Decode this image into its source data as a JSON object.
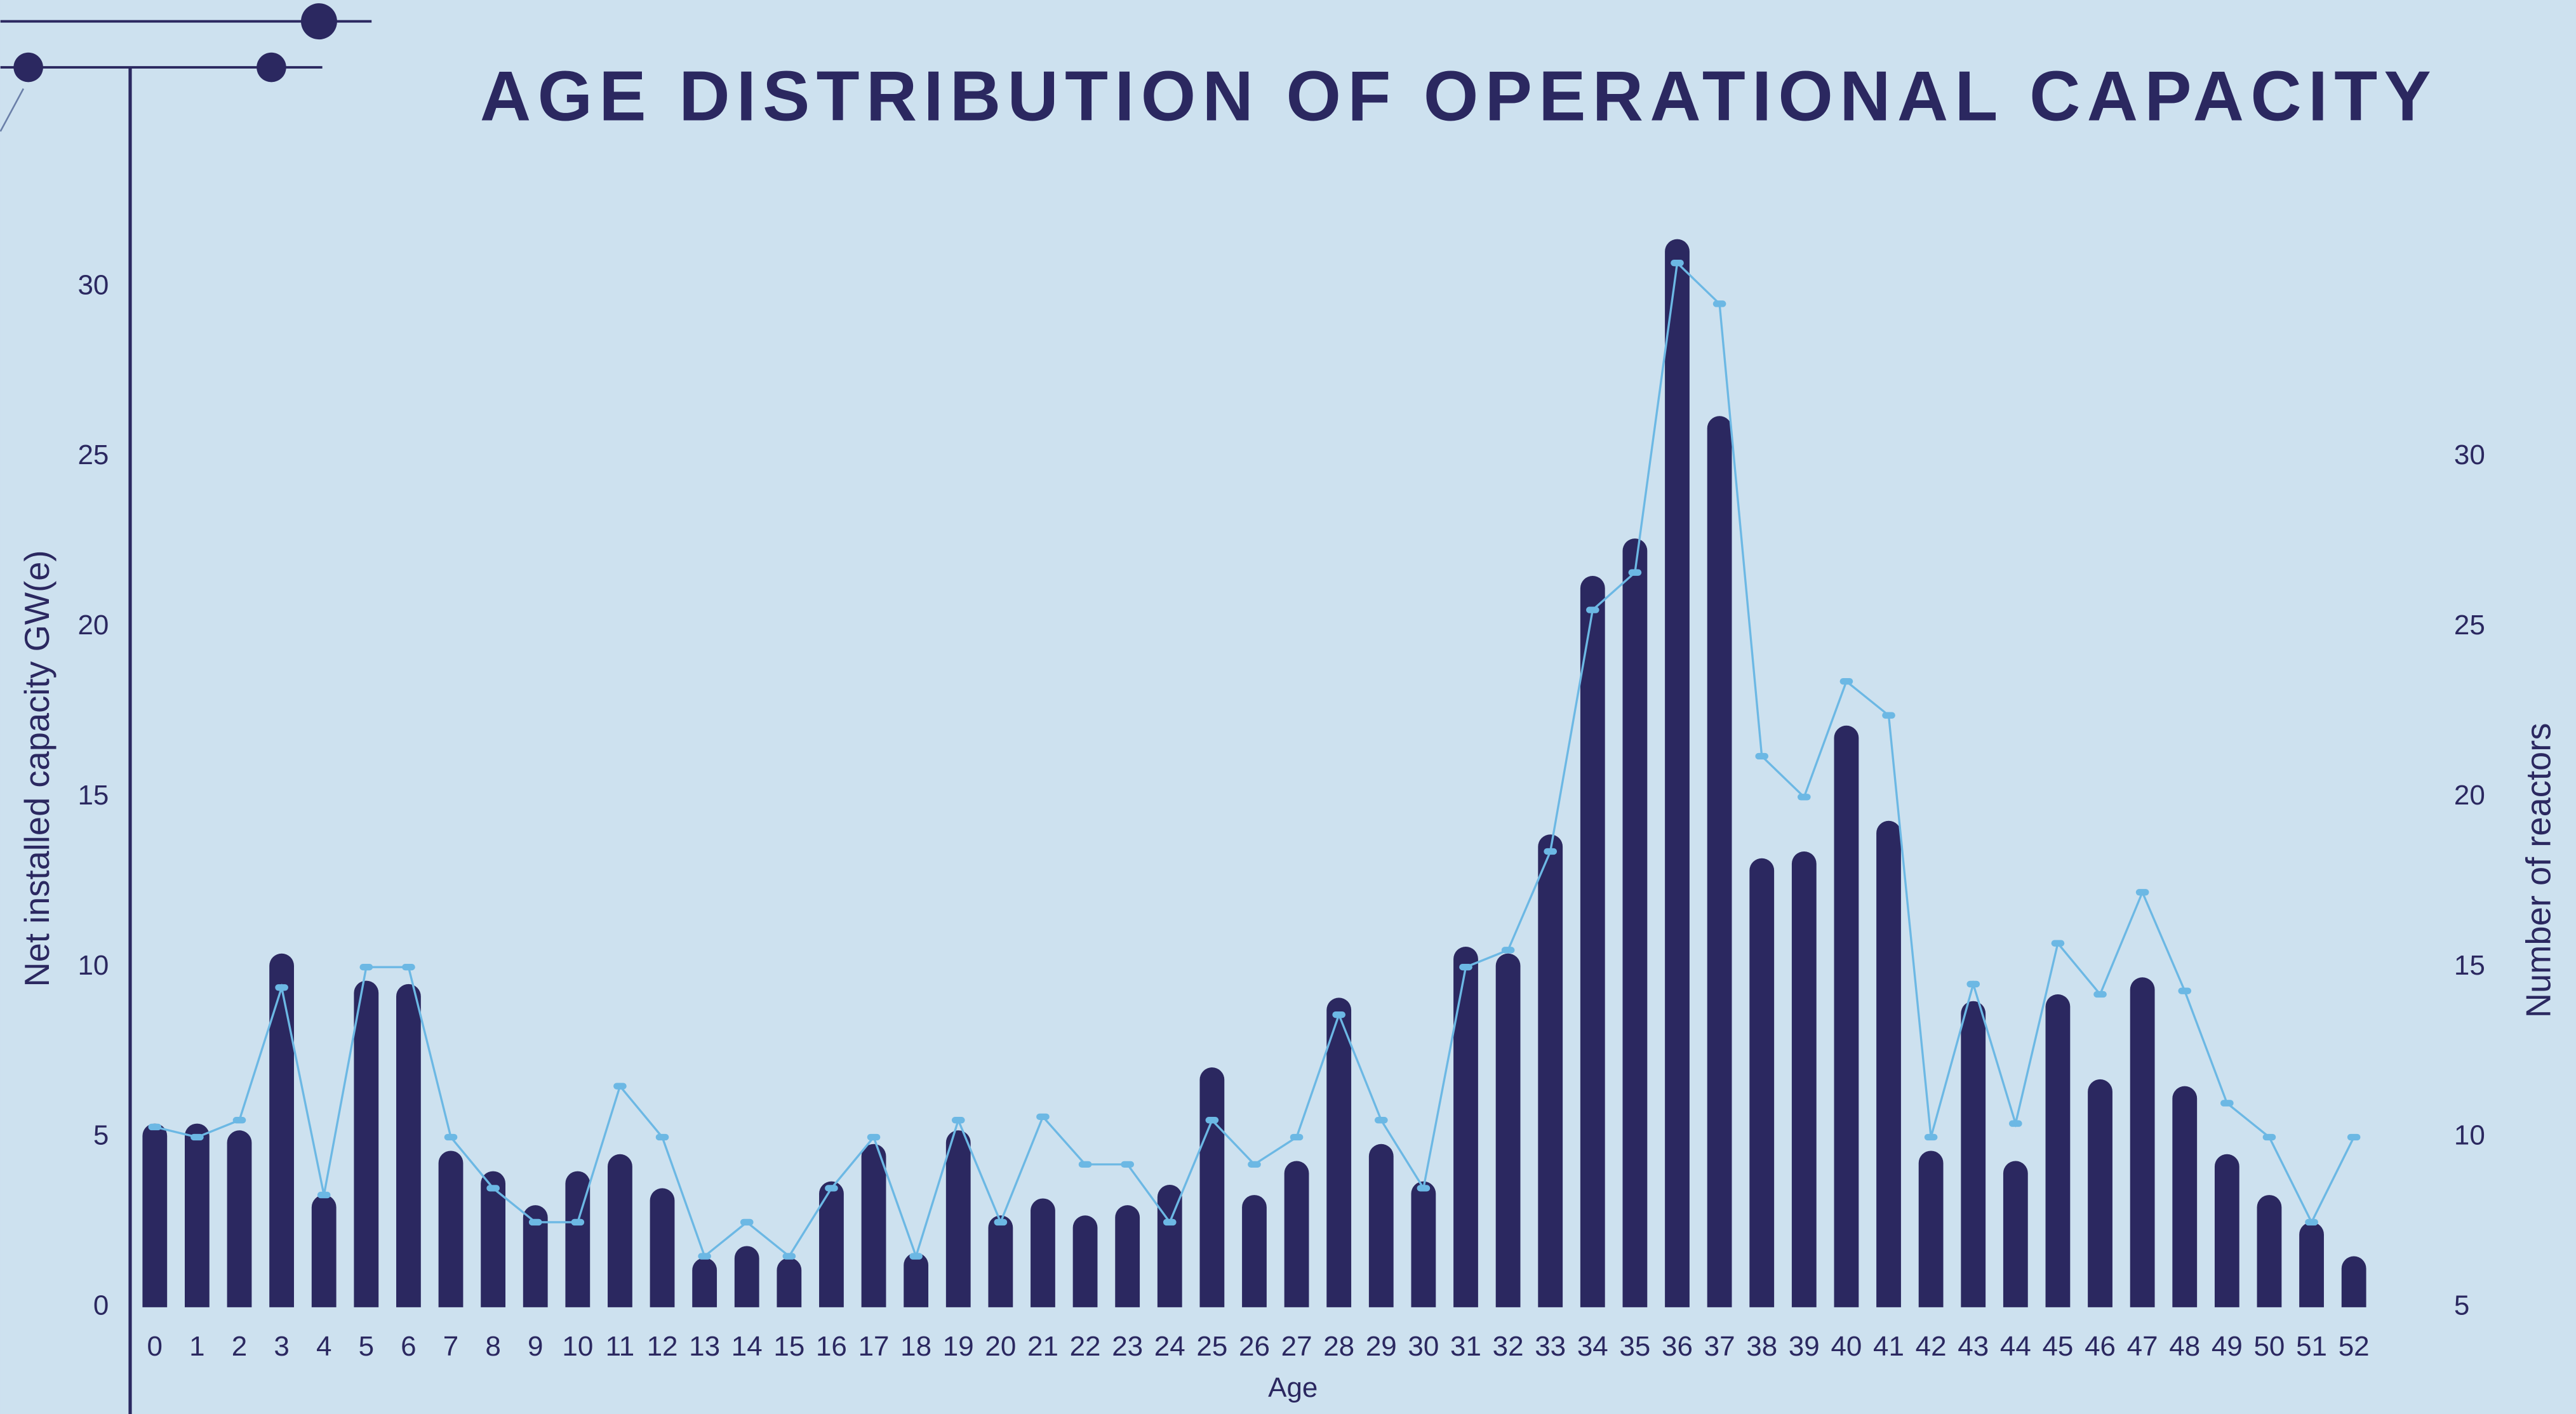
{
  "chart_data": {
    "type": "bar_line",
    "title": "AGE DISTRIBUTION OF OPERATIONAL CAPACITY",
    "x_label": "Age",
    "y_label": "Net installed capacity  GW(e)",
    "y2_label": "Number of reactors",
    "categories": [
      "0",
      "1",
      "2",
      "3",
      "4",
      "5",
      "6",
      "7",
      "8",
      "9",
      "10",
      "11",
      "12",
      "13",
      "14",
      "15",
      "16",
      "17",
      "18",
      "19",
      "20",
      "21",
      "22",
      "23",
      "24",
      "25",
      "26",
      "27",
      "28",
      "29",
      "30",
      "31",
      "32",
      "33",
      "34",
      "35",
      "36",
      "37",
      "38",
      "39",
      "40",
      "41",
      "42",
      "43",
      "44",
      "45",
      "46",
      "47",
      "48",
      "49",
      "50",
      "51",
      "52"
    ],
    "series": [
      {
        "name": "Net installed capacity",
        "type": "bar",
        "color": "#2b2860",
        "values": [
          5.4,
          5.4,
          5.2,
          10.4,
          3.3,
          9.6,
          9.5,
          4.6,
          4.0,
          3.0,
          4.0,
          4.5,
          3.5,
          1.45,
          1.8,
          1.45,
          3.7,
          4.8,
          1.6,
          5.2,
          2.7,
          3.2,
          2.7,
          3.0,
          3.6,
          7.05,
          3.3,
          4.3,
          9.1,
          4.8,
          3.7,
          10.6,
          10.4,
          13.9,
          21.5,
          22.6,
          31.4,
          26.2,
          13.2,
          13.4,
          17.1,
          14.3,
          4.6,
          9.0,
          4.3,
          9.2,
          6.7,
          9.7,
          6.5,
          4.5,
          3.3,
          2.5,
          1.5
        ]
      },
      {
        "name": "Number of reactors",
        "type": "line",
        "axis": "y2",
        "color": "#6cb8e4",
        "values": [
          10.3,
          10,
          10.5,
          14.4,
          8.3,
          15,
          15,
          10,
          8.5,
          7.5,
          7.5,
          11.5,
          10,
          6.5,
          7.5,
          6.5,
          8.5,
          10,
          6.5,
          10.5,
          7.5,
          10.6,
          9.2,
          9.2,
          7.5,
          10.5,
          9.2,
          10,
          13.6,
          10.5,
          8.5,
          15,
          15.5,
          18.4,
          25.5,
          26.6,
          35.7,
          34.5,
          21.2,
          20,
          23.4,
          22.4,
          10,
          14.5,
          10.4,
          15.7,
          14.2,
          17.2,
          14.3,
          11,
          10,
          7.5,
          10
        ]
      }
    ],
    "ylim": [
      0,
      36.5
    ],
    "yticks": [
      0,
      5,
      10,
      15,
      20,
      25,
      30
    ],
    "y2lim": [
      5,
      41.5
    ],
    "y2ticks": [
      5,
      10,
      15,
      20,
      25,
      30
    ]
  }
}
